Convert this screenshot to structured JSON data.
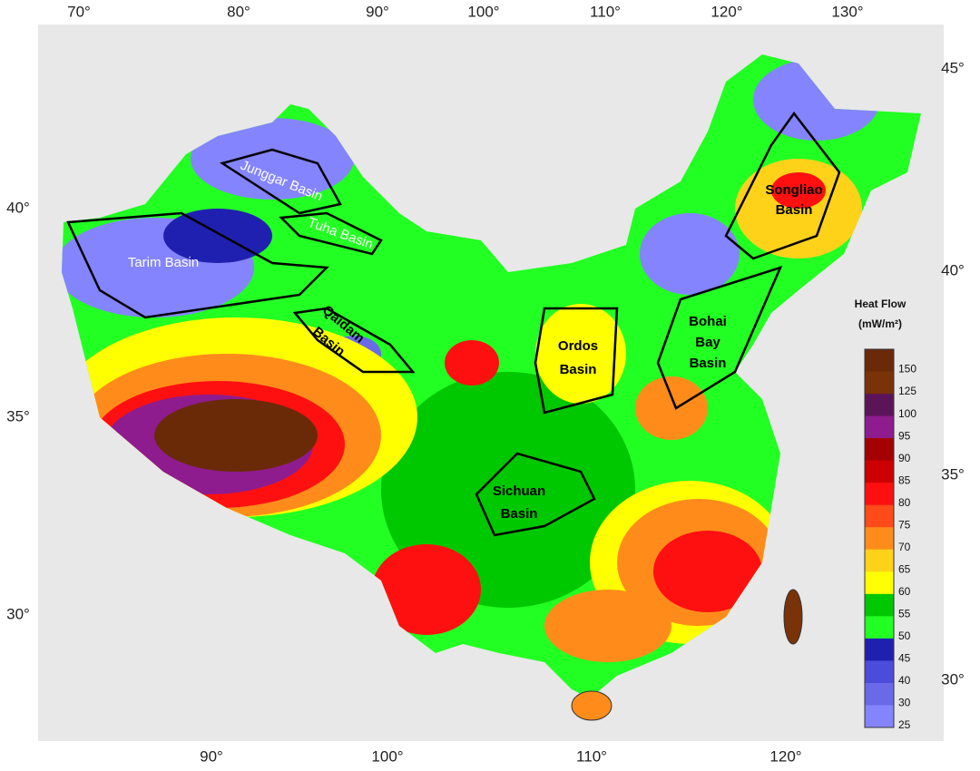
{
  "axes": {
    "top": [
      "70°",
      "80°",
      "90°",
      "100°",
      "110°",
      "120°",
      "130°"
    ],
    "bottom": [
      "90°",
      "100°",
      "110°",
      "120°"
    ],
    "left": [
      "40°",
      "35°",
      "30°"
    ],
    "right": [
      "45°",
      "40°",
      "35°",
      "30°"
    ]
  },
  "basins": [
    {
      "lines": [
        "Junggar Basin"
      ]
    },
    {
      "lines": [
        "Tuha Basin"
      ]
    },
    {
      "lines": [
        "Tarim Basin"
      ]
    },
    {
      "lines": [
        "Qaidam",
        "Basin"
      ]
    },
    {
      "lines": [
        "Ordos",
        "Basin"
      ]
    },
    {
      "lines": [
        "Bohai",
        "Bay",
        "Basin"
      ]
    },
    {
      "lines": [
        "Songliao",
        "Basin"
      ]
    },
    {
      "lines": [
        "Sichuan",
        "Basin"
      ]
    }
  ],
  "legend": {
    "title": [
      "Heat Flow",
      "(mW/m²)"
    ],
    "items": [
      {
        "value": 150,
        "color": "#6a2a08"
      },
      {
        "value": 125,
        "color": "#7a3208"
      },
      {
        "value": 100,
        "color": "#5c1458"
      },
      {
        "value": 95,
        "color": "#8e1c8e"
      },
      {
        "value": 90,
        "color": "#a50000"
      },
      {
        "value": 85,
        "color": "#cc0000"
      },
      {
        "value": 80,
        "color": "#ff1010"
      },
      {
        "value": 75,
        "color": "#ff4a1a"
      },
      {
        "value": 70,
        "color": "#ff8c1a"
      },
      {
        "value": 65,
        "color": "#ffd21a"
      },
      {
        "value": 60,
        "color": "#ffff00"
      },
      {
        "value": 55,
        "color": "#00c800"
      },
      {
        "value": 50,
        "color": "#22ff22"
      },
      {
        "value": 45,
        "color": "#2020b0"
      },
      {
        "value": 40,
        "color": "#4c4cdc"
      },
      {
        "value": 30,
        "color": "#6a6ae8"
      },
      {
        "value": 25,
        "color": "#8484ff"
      }
    ]
  }
}
